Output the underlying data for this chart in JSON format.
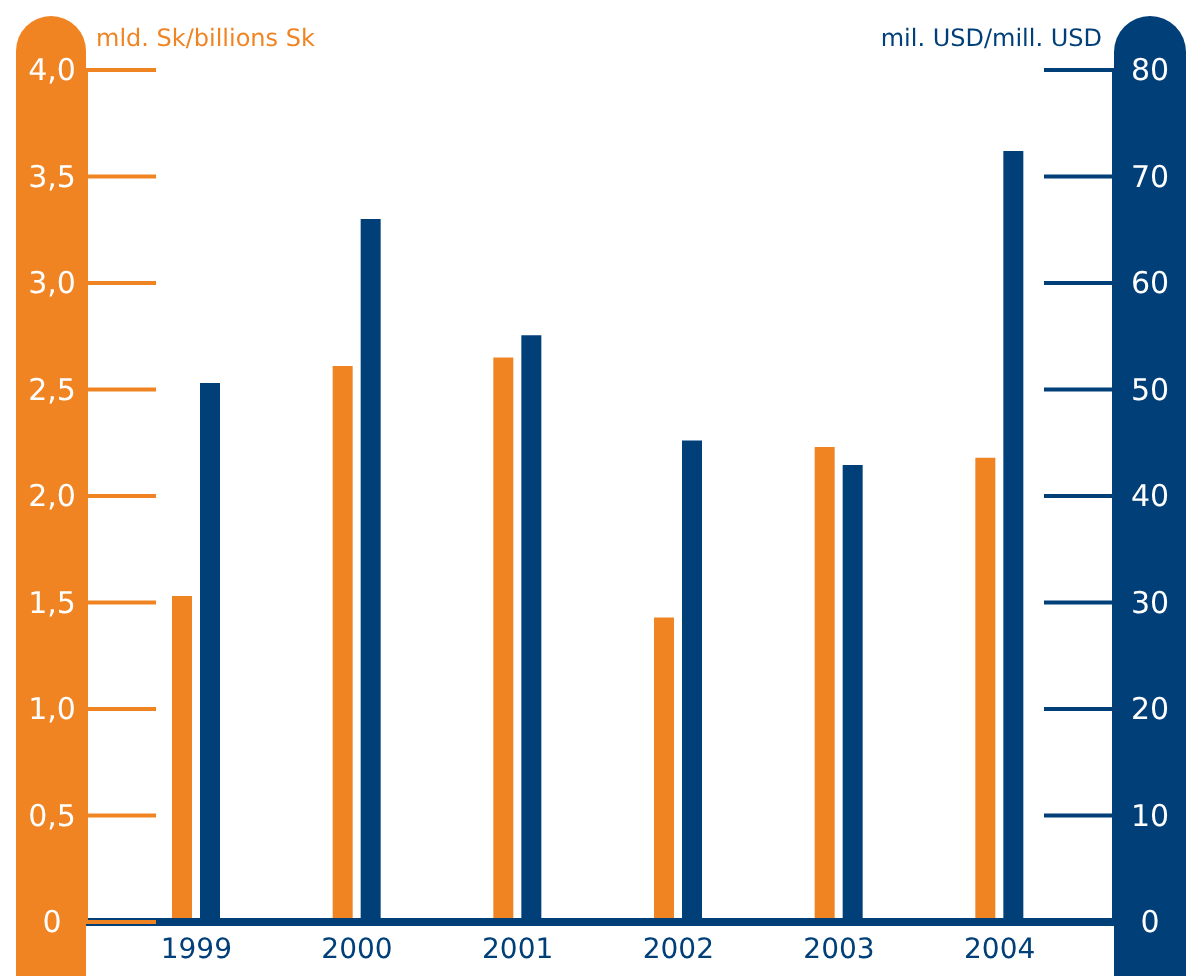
{
  "chart_data": {
    "type": "bar",
    "ylabel": "mld. Sk/billions Sk",
    "y2label": "mil. USD/mill. USD",
    "categories": [
      "1999",
      "2000",
      "2001",
      "2002",
      "2003",
      "2004"
    ],
    "series": [
      {
        "color": "#f08423",
        "values": [
          1.53,
          2.61,
          2.65,
          1.43,
          2.23,
          2.18
        ]
      },
      {
        "color": "#003f78",
        "axis": "y2",
        "values": [
          50.6,
          66.0,
          55.1,
          45.2,
          42.9,
          72.4
        ]
      }
    ],
    "ylim": [
      0,
      4
    ],
    "yticks": [
      {
        "value": 0,
        "label": "0"
      },
      {
        "value": 0.5,
        "label": "0,5"
      },
      {
        "value": 1,
        "label": "1,0"
      },
      {
        "value": 1.5,
        "label": "1,5"
      },
      {
        "value": 2,
        "label": "2,0"
      },
      {
        "value": 2.5,
        "label": "2,5"
      },
      {
        "value": 3,
        "label": "3,0"
      },
      {
        "value": 3.5,
        "label": "3,5"
      },
      {
        "value": 4,
        "label": "4,0"
      }
    ],
    "y2lim": [
      0,
      80
    ],
    "y2ticks": [
      0,
      10,
      20,
      30,
      40,
      50,
      60,
      70,
      80
    ]
  }
}
